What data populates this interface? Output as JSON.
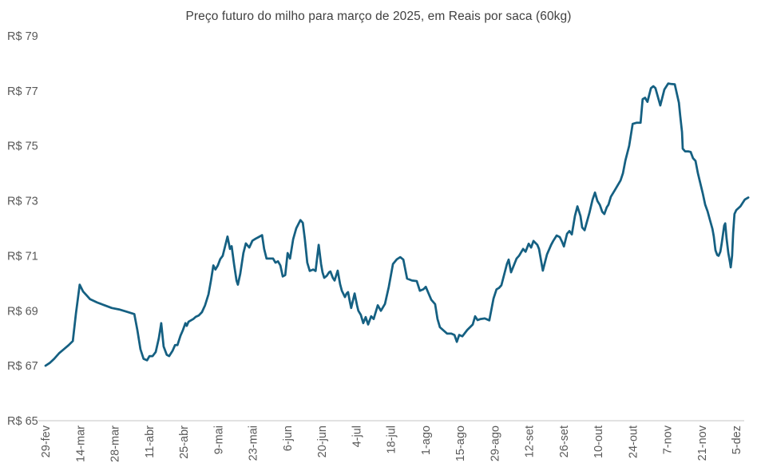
{
  "colors": {
    "line": "#156082",
    "title_text": "#404040",
    "axis_text": "#595959",
    "axis_line": "#D9D9D9",
    "background": "#FFFFFF"
  },
  "chart_data": {
    "type": "line",
    "title": "Preço futuro do milho para março de 2025, em Reais por saca (60kg)",
    "ylim": [
      65,
      79
    ],
    "grid": false,
    "legend": false,
    "y_ticks": [
      {
        "label": "R$ 79",
        "value": 79
      },
      {
        "label": "R$ 77",
        "value": 77
      },
      {
        "label": "R$ 75",
        "value": 75
      },
      {
        "label": "R$ 73",
        "value": 73
      },
      {
        "label": "R$ 71",
        "value": 71
      },
      {
        "label": "R$ 69",
        "value": 69
      },
      {
        "label": "R$ 67",
        "value": 67
      },
      {
        "label": "R$ 65",
        "value": 65
      }
    ],
    "x_ticks": [
      "29-fev",
      "14-mar",
      "28-mar",
      "11-abr",
      "25-abr",
      "9-mai",
      "23-mai",
      "6-jun",
      "20-jun",
      "4-jul",
      "18-jul",
      "1-ago",
      "15-ago",
      "29-ago",
      "12-set",
      "26-set",
      "10-out",
      "24-out",
      "7-nov",
      "21-nov",
      "5-dez"
    ],
    "x_unit": "two-week intervals from 29-fev-2024 (fractional = daily quotes)",
    "series": [
      {
        "points": [
          [
            0,
            67.0
          ],
          [
            0.12,
            67.1
          ],
          [
            0.25,
            67.25
          ],
          [
            0.39,
            67.45
          ],
          [
            0.53,
            67.6
          ],
          [
            0.67,
            67.75
          ],
          [
            0.79,
            67.9
          ],
          [
            0.88,
            68.9
          ],
          [
            0.99,
            69.95
          ],
          [
            1.09,
            69.7
          ],
          [
            1.2,
            69.55
          ],
          [
            1.29,
            69.42
          ],
          [
            1.5,
            69.3
          ],
          [
            1.71,
            69.2
          ],
          [
            1.92,
            69.1
          ],
          [
            2.13,
            69.05
          ],
          [
            2.34,
            68.97
          ],
          [
            2.57,
            68.88
          ],
          [
            2.66,
            68.3
          ],
          [
            2.75,
            67.6
          ],
          [
            2.84,
            67.25
          ],
          [
            2.94,
            67.2
          ],
          [
            3.01,
            67.35
          ],
          [
            3.1,
            67.35
          ],
          [
            3.19,
            67.5
          ],
          [
            3.28,
            68.0
          ],
          [
            3.35,
            68.55
          ],
          [
            3.42,
            67.7
          ],
          [
            3.51,
            67.4
          ],
          [
            3.58,
            67.35
          ],
          [
            3.68,
            67.55
          ],
          [
            3.75,
            67.75
          ],
          [
            3.82,
            67.75
          ],
          [
            3.91,
            68.1
          ],
          [
            3.98,
            68.3
          ],
          [
            4.05,
            68.55
          ],
          [
            4.09,
            68.45
          ],
          [
            4.14,
            68.6
          ],
          [
            4.21,
            68.65
          ],
          [
            4.28,
            68.7
          ],
          [
            4.35,
            68.78
          ],
          [
            4.44,
            68.83
          ],
          [
            4.53,
            68.95
          ],
          [
            4.62,
            69.2
          ],
          [
            4.72,
            69.6
          ],
          [
            4.79,
            70.1
          ],
          [
            4.86,
            70.65
          ],
          [
            4.92,
            70.5
          ],
          [
            4.99,
            70.65
          ],
          [
            5.06,
            70.88
          ],
          [
            5.13,
            71.0
          ],
          [
            5.2,
            71.35
          ],
          [
            5.27,
            71.7
          ],
          [
            5.34,
            71.25
          ],
          [
            5.39,
            71.35
          ],
          [
            5.46,
            70.7
          ],
          [
            5.53,
            70.1
          ],
          [
            5.57,
            69.95
          ],
          [
            5.64,
            70.35
          ],
          [
            5.73,
            71.1
          ],
          [
            5.8,
            71.45
          ],
          [
            5.9,
            71.3
          ],
          [
            5.99,
            71.55
          ],
          [
            6.08,
            71.62
          ],
          [
            6.17,
            71.68
          ],
          [
            6.27,
            71.75
          ],
          [
            6.33,
            71.25
          ],
          [
            6.4,
            70.9
          ],
          [
            6.5,
            70.9
          ],
          [
            6.59,
            70.9
          ],
          [
            6.66,
            70.75
          ],
          [
            6.73,
            70.8
          ],
          [
            6.8,
            70.65
          ],
          [
            6.87,
            70.25
          ],
          [
            6.94,
            70.3
          ],
          [
            7.01,
            71.1
          ],
          [
            7.08,
            70.9
          ],
          [
            7.17,
            71.6
          ],
          [
            7.26,
            72.0
          ],
          [
            7.38,
            72.3
          ],
          [
            7.45,
            72.2
          ],
          [
            7.51,
            71.6
          ],
          [
            7.58,
            70.75
          ],
          [
            7.65,
            70.45
          ],
          [
            7.75,
            70.5
          ],
          [
            7.82,
            70.45
          ],
          [
            7.91,
            71.4
          ],
          [
            7.98,
            70.7
          ],
          [
            8.02,
            70.4
          ],
          [
            8.07,
            70.2
          ],
          [
            8.14,
            70.27
          ],
          [
            8.21,
            70.4
          ],
          [
            8.25,
            70.43
          ],
          [
            8.32,
            70.2
          ],
          [
            8.37,
            70.1
          ],
          [
            8.46,
            70.46
          ],
          [
            8.53,
            69.97
          ],
          [
            8.58,
            69.73
          ],
          [
            8.67,
            69.5
          ],
          [
            8.72,
            69.63
          ],
          [
            8.76,
            69.68
          ],
          [
            8.81,
            69.35
          ],
          [
            8.85,
            69.1
          ],
          [
            8.95,
            69.63
          ],
          [
            9.02,
            69.2
          ],
          [
            9.06,
            69.0
          ],
          [
            9.13,
            68.85
          ],
          [
            9.2,
            68.55
          ],
          [
            9.27,
            68.77
          ],
          [
            9.34,
            68.5
          ],
          [
            9.43,
            68.8
          ],
          [
            9.5,
            68.7
          ],
          [
            9.62,
            69.2
          ],
          [
            9.71,
            69.0
          ],
          [
            9.83,
            69.25
          ],
          [
            9.94,
            69.87
          ],
          [
            10.06,
            70.7
          ],
          [
            10.17,
            70.87
          ],
          [
            10.27,
            70.95
          ],
          [
            10.36,
            70.86
          ],
          [
            10.47,
            70.17
          ],
          [
            10.61,
            70.1
          ],
          [
            10.75,
            70.08
          ],
          [
            10.84,
            69.73
          ],
          [
            10.94,
            69.78
          ],
          [
            11.01,
            69.87
          ],
          [
            11.17,
            69.4
          ],
          [
            11.28,
            69.24
          ],
          [
            11.35,
            68.7
          ],
          [
            11.42,
            68.4
          ],
          [
            11.51,
            68.3
          ],
          [
            11.63,
            68.17
          ],
          [
            11.75,
            68.17
          ],
          [
            11.84,
            68.12
          ],
          [
            11.91,
            67.87
          ],
          [
            11.98,
            68.12
          ],
          [
            12.07,
            68.07
          ],
          [
            12.21,
            68.3
          ],
          [
            12.37,
            68.5
          ],
          [
            12.44,
            68.8
          ],
          [
            12.51,
            68.66
          ],
          [
            12.6,
            68.7
          ],
          [
            12.72,
            68.72
          ],
          [
            12.85,
            68.65
          ],
          [
            12.97,
            69.44
          ],
          [
            13.06,
            69.78
          ],
          [
            13.13,
            69.83
          ],
          [
            13.2,
            69.93
          ],
          [
            13.36,
            70.7
          ],
          [
            13.41,
            70.86
          ],
          [
            13.48,
            70.4
          ],
          [
            13.64,
            70.9
          ],
          [
            13.71,
            71.0
          ],
          [
            13.83,
            71.25
          ],
          [
            13.9,
            71.15
          ],
          [
            13.99,
            71.44
          ],
          [
            14.06,
            71.3
          ],
          [
            14.13,
            71.54
          ],
          [
            14.24,
            71.4
          ],
          [
            14.29,
            71.25
          ],
          [
            14.4,
            70.46
          ],
          [
            14.52,
            71.05
          ],
          [
            14.64,
            71.4
          ],
          [
            14.7,
            71.54
          ],
          [
            14.8,
            71.74
          ],
          [
            14.89,
            71.68
          ],
          [
            14.96,
            71.5
          ],
          [
            15.01,
            71.34
          ],
          [
            15.1,
            71.8
          ],
          [
            15.17,
            71.9
          ],
          [
            15.24,
            71.78
          ],
          [
            15.33,
            72.45
          ],
          [
            15.4,
            72.8
          ],
          [
            15.49,
            72.45
          ],
          [
            15.54,
            72.03
          ],
          [
            15.61,
            71.93
          ],
          [
            15.75,
            72.57
          ],
          [
            15.84,
            73.05
          ],
          [
            15.91,
            73.3
          ],
          [
            15.98,
            73.0
          ],
          [
            16.05,
            72.85
          ],
          [
            16.12,
            72.6
          ],
          [
            16.18,
            72.52
          ],
          [
            16.25,
            72.76
          ],
          [
            16.3,
            72.86
          ],
          [
            16.37,
            73.15
          ],
          [
            16.49,
            73.4
          ],
          [
            16.65,
            73.74
          ],
          [
            16.72,
            74.0
          ],
          [
            16.79,
            74.47
          ],
          [
            16.9,
            75.0
          ],
          [
            17.0,
            75.8
          ],
          [
            17.11,
            75.84
          ],
          [
            17.23,
            75.84
          ],
          [
            17.29,
            76.7
          ],
          [
            17.36,
            76.75
          ],
          [
            17.43,
            76.6
          ],
          [
            17.53,
            77.1
          ],
          [
            17.6,
            77.17
          ],
          [
            17.66,
            77.1
          ],
          [
            17.8,
            76.47
          ],
          [
            17.92,
            77.05
          ],
          [
            18.03,
            77.27
          ],
          [
            18.13,
            77.25
          ],
          [
            18.22,
            77.24
          ],
          [
            18.34,
            76.57
          ],
          [
            18.38,
            76.08
          ],
          [
            18.43,
            75.5
          ],
          [
            18.45,
            74.9
          ],
          [
            18.52,
            74.8
          ],
          [
            18.61,
            74.8
          ],
          [
            18.68,
            74.78
          ],
          [
            18.75,
            74.55
          ],
          [
            18.82,
            74.45
          ],
          [
            18.89,
            74.0
          ],
          [
            18.96,
            73.64
          ],
          [
            19.03,
            73.28
          ],
          [
            19.1,
            72.86
          ],
          [
            19.17,
            72.62
          ],
          [
            19.24,
            72.3
          ],
          [
            19.31,
            71.98
          ],
          [
            19.35,
            71.7
          ],
          [
            19.4,
            71.2
          ],
          [
            19.45,
            71.03
          ],
          [
            19.49,
            71.0
          ],
          [
            19.54,
            71.15
          ],
          [
            19.58,
            71.45
          ],
          [
            19.65,
            72.1
          ],
          [
            19.68,
            72.18
          ],
          [
            19.72,
            71.63
          ],
          [
            19.77,
            71.1
          ],
          [
            19.82,
            70.76
          ],
          [
            19.84,
            70.58
          ],
          [
            19.88,
            71.0
          ],
          [
            19.91,
            71.83
          ],
          [
            19.95,
            72.52
          ],
          [
            20.0,
            72.66
          ],
          [
            20.12,
            72.8
          ],
          [
            20.25,
            73.05
          ],
          [
            20.35,
            73.12
          ]
        ]
      }
    ]
  }
}
